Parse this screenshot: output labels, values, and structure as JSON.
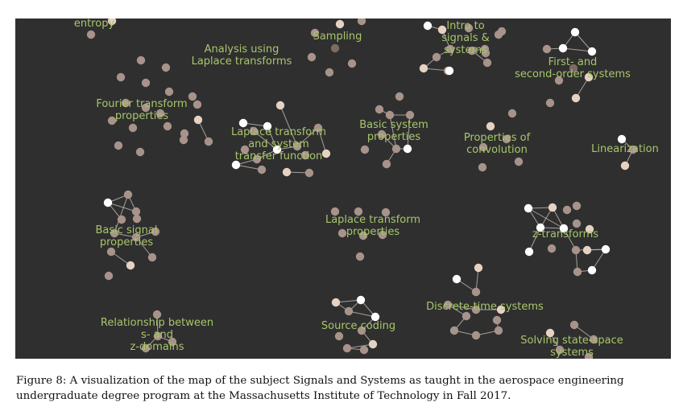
{
  "figure": {
    "background": "#2f2f2f",
    "node_colors": {
      "mastered": "#ffffff",
      "light": "#e6d2c2",
      "medium": "#a7938a",
      "dark": "#7d6a63"
    },
    "edge_color": "#cfc6c0",
    "label_color": "#a8c66c",
    "topics": [
      {
        "id": "entropy",
        "label": "entropy"
      },
      {
        "id": "analysis-laplace",
        "label": "Analysis using\nLaplace transforms"
      },
      {
        "id": "sampling",
        "label": "Sampling"
      },
      {
        "id": "intro-signals",
        "label": "Intro to\nsignals &\nsystems"
      },
      {
        "id": "first-second-order",
        "label": "First- and\nsecond-order systems"
      },
      {
        "id": "fourier-properties",
        "label": "Fourier transform\nproperties"
      },
      {
        "id": "laplace-system-tf",
        "label": "Laplace transform\nand system\ntransfer function"
      },
      {
        "id": "basic-system-properties",
        "label": "Basic system\nproperties"
      },
      {
        "id": "convolution-properties",
        "label": "Properties of\nconvolution"
      },
      {
        "id": "linearization",
        "label": "Linearization"
      },
      {
        "id": "basic-signal-properties",
        "label": "Basic signal\nproperties"
      },
      {
        "id": "laplace-properties",
        "label": "Laplace transform\nproperties"
      },
      {
        "id": "z-transforms",
        "label": "z-transforms"
      },
      {
        "id": "discrete-time",
        "label": "Discrete-time systems"
      },
      {
        "id": "relationship-s-z",
        "label": "Relationship between\ns- and\nz-domains"
      },
      {
        "id": "source-coding",
        "label": "Source coding"
      },
      {
        "id": "state-space",
        "label": "Solving state-space\nsystems"
      }
    ]
  },
  "caption": "Figure 8: A visualization of the map of the subject Signals and Systems as taught in the aerospace engineering undergraduate degree program at the Massachusetts Institute of Technology in Fall 2017."
}
